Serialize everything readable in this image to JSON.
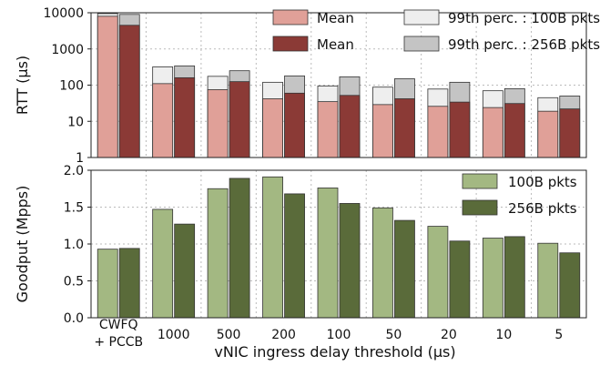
{
  "chart_data": [
    {
      "type": "bar",
      "yscale": "log",
      "ylabel": "RTT (μs)",
      "ylim": [
        1,
        10000
      ],
      "yticks": [
        "1",
        "10",
        "100",
        "1000",
        "10000"
      ],
      "categories": [
        "CWFQ\n+ PCCB",
        "1000",
        "500",
        "200",
        "100",
        "50",
        "20",
        "10",
        "5"
      ],
      "grid": true,
      "legend_position": "top-right",
      "series": [
        {
          "name": "Mean",
          "group": "100B",
          "values": [
            8000,
            110,
            75,
            42,
            35,
            29,
            26,
            24,
            19
          ],
          "color": "#e0a098"
        },
        {
          "name": "Mean",
          "group": "256B",
          "values": [
            4500,
            160,
            125,
            60,
            52,
            42,
            34,
            31,
            22
          ],
          "color": "#8b3a36"
        },
        {
          "name": "99th perc. : 100B pkts",
          "group": "100B",
          "values": [
            9500,
            320,
            175,
            120,
            95,
            88,
            78,
            70,
            45
          ],
          "color": "#eeeeee"
        },
        {
          "name": "99th perc. : 256B pkts",
          "group": "256B",
          "values": [
            9000,
            340,
            250,
            180,
            170,
            150,
            120,
            80,
            50
          ],
          "color": "#c4c4c4"
        }
      ]
    },
    {
      "type": "bar",
      "ylabel": "Goodput (Mpps)",
      "xlabel": "vNIC ingress delay threshold (μs)",
      "ylim": [
        0,
        2.0
      ],
      "yticks": [
        "0.0",
        "0.5",
        "1.0",
        "1.5",
        "2.0"
      ],
      "categories": [
        "CWFQ\n+ PCCB",
        "1000",
        "500",
        "200",
        "100",
        "50",
        "20",
        "10",
        "5"
      ],
      "grid": true,
      "legend_position": "top-right",
      "series": [
        {
          "name": "100B pkts",
          "values": [
            0.93,
            1.47,
            1.75,
            1.91,
            1.76,
            1.49,
            1.24,
            1.08,
            1.01
          ],
          "color": "#a3b882"
        },
        {
          "name": "256B pkts",
          "values": [
            0.94,
            1.27,
            1.89,
            1.68,
            1.55,
            1.32,
            1.04,
            1.1,
            0.88
          ],
          "color": "#5a6b3a"
        }
      ]
    }
  ]
}
